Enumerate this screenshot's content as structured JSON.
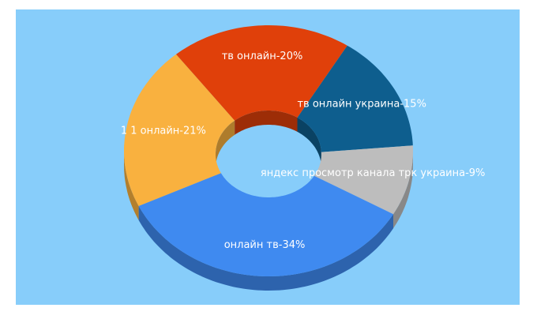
{
  "chart_data": {
    "type": "donut3d",
    "values": [
      15,
      9,
      34,
      21,
      20
    ],
    "value_labels": [
      "тв онлайн украина-15%",
      "яндекс просмотр канала трк украина-9%",
      "онлайн тв-34%",
      "1 1 онлайн-21%",
      "тв онлайн-20%"
    ],
    "colors": [
      "#0e5e8e",
      "#bdbdbd",
      "#3f8af0",
      "#f9b13f",
      "#e0400a"
    ],
    "background": "#87cdfa"
  }
}
